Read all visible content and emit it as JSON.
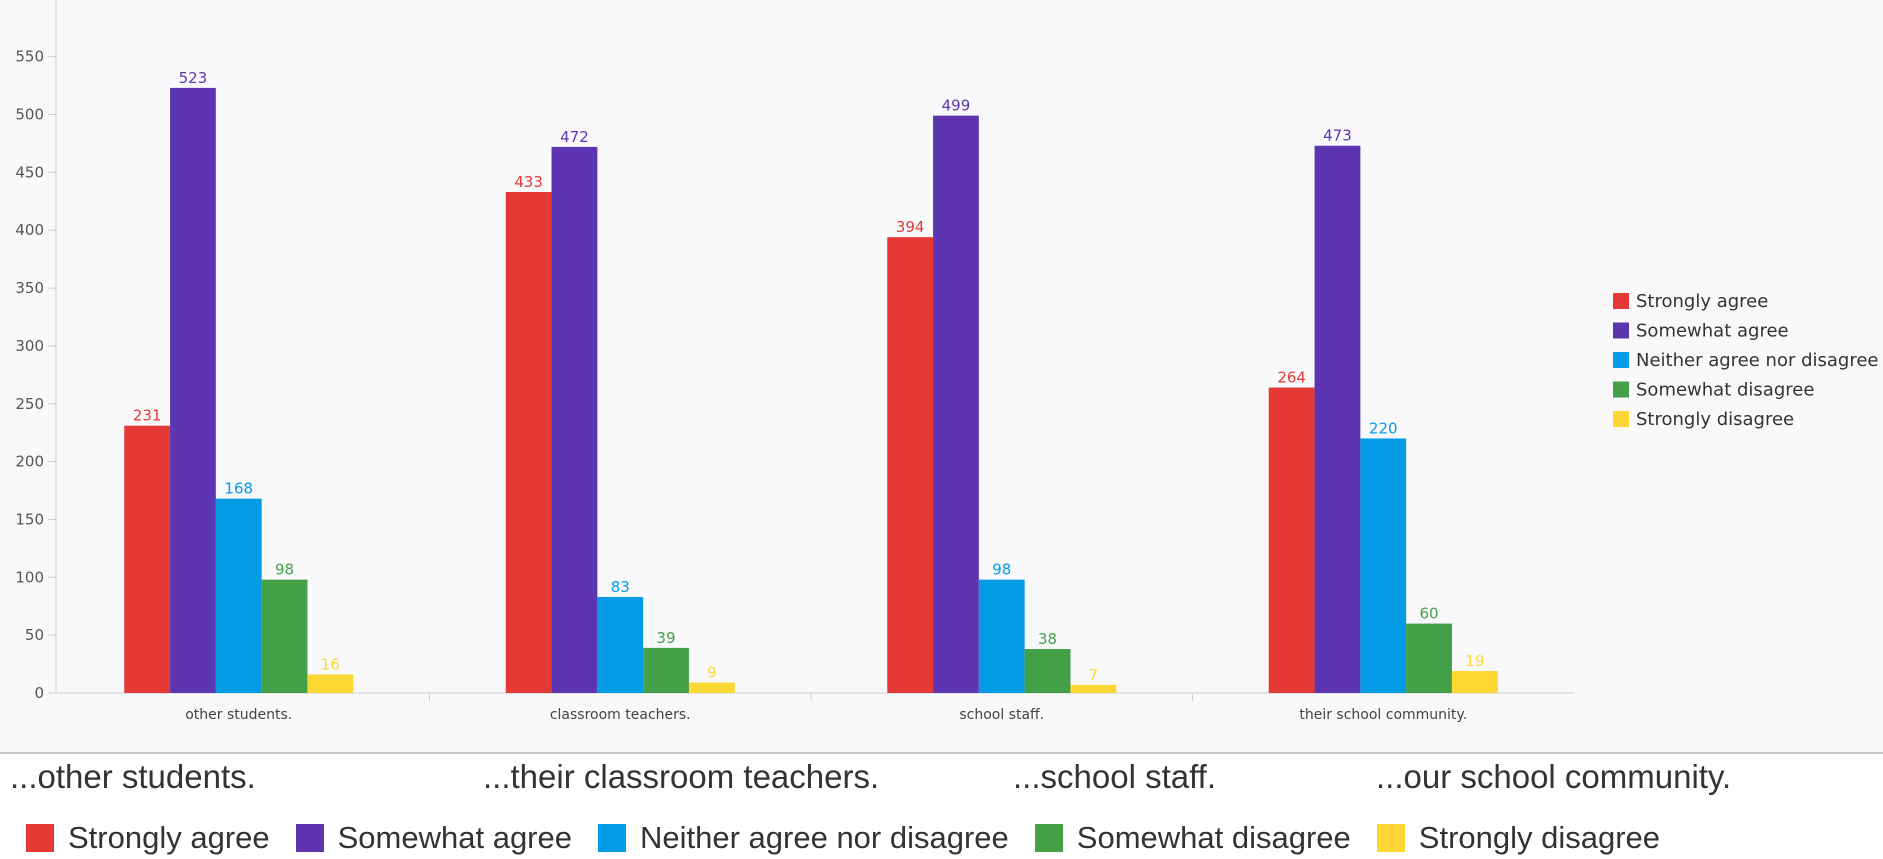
{
  "chart_data": {
    "type": "bar",
    "categories": [
      "other students.",
      "classroom teachers.",
      "school staff.",
      "their school community."
    ],
    "series": [
      {
        "name": "Strongly agree",
        "color": "#e53935",
        "values": [
          231,
          433,
          394,
          264
        ]
      },
      {
        "name": "Somewhat agree",
        "color": "#5e35b1",
        "values": [
          523,
          472,
          499,
          473
        ]
      },
      {
        "name": "Neither agree nor disagree",
        "color": "#039be5",
        "values": [
          168,
          83,
          98,
          220
        ]
      },
      {
        "name": "Somewhat disagree",
        "color": "#43a047",
        "values": [
          98,
          39,
          38,
          60
        ]
      },
      {
        "name": "Strongly disagree",
        "color": "#fdd835",
        "values": [
          16,
          9,
          7,
          19
        ]
      }
    ],
    "y_ticks": [
      0,
      50,
      100,
      150,
      200,
      250,
      300,
      350,
      400,
      450,
      500,
      550
    ],
    "ylim": [
      0,
      600
    ],
    "grid": false,
    "legend_position": "right",
    "data_labels": true
  },
  "captions": [
    "...other students.",
    "...their classroom teachers.",
    "...school staff.",
    "...our school community."
  ],
  "bottom_legend": [
    {
      "label": "Strongly agree",
      "color": "#e53935"
    },
    {
      "label": "Somewhat agree",
      "color": "#5e35b1"
    },
    {
      "label": "Neither agree nor disagree",
      "color": "#039be5"
    },
    {
      "label": "Somewhat disagree",
      "color": "#43a047"
    },
    {
      "label": "Strongly disagree",
      "color": "#fdd835"
    }
  ]
}
